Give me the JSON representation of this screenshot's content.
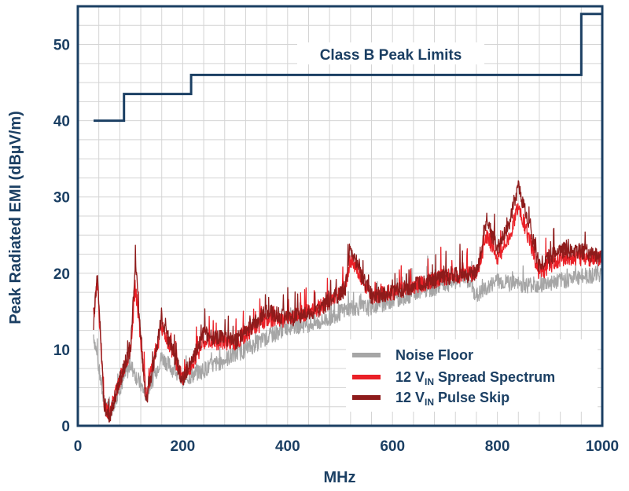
{
  "chart_data": {
    "type": "line",
    "xlabel": "MHz",
    "ylabel": "Peak Radiated EMI (dBµV/m)",
    "xlim": [
      0,
      1000
    ],
    "ylim": [
      0,
      55
    ],
    "x_ticks": [
      "0",
      "200",
      "400",
      "600",
      "800",
      "1000"
    ],
    "y_ticks": [
      "0",
      "10",
      "20",
      "30",
      "40",
      "50"
    ],
    "grid": true,
    "legend_position": "bottom-right",
    "annotation": "Class B Peak Limits",
    "colors": {
      "axis": "#1b3f63",
      "grid": "#d4d4d4",
      "noise_floor": "#a6a6a6",
      "spread_spectrum": "#ea2027",
      "pulse_skip": "#8e1b1b",
      "limit": "#1b3f63"
    },
    "limit_line": {
      "name": "Class B Peak Limits",
      "x": [
        30,
        88,
        88,
        216,
        216,
        960,
        960,
        1000
      ],
      "y": [
        40,
        40,
        43.5,
        43.5,
        46,
        46,
        54,
        54
      ]
    },
    "series": [
      {
        "name": "Noise Floor",
        "legend_main": "Noise Floor",
        "legend_sub": "",
        "legend_tail": "",
        "x": [
          30,
          50,
          60,
          80,
          100,
          130,
          160,
          200,
          260,
          320,
          400,
          460,
          520,
          560,
          600,
          650,
          700,
          740,
          760,
          800,
          840,
          880,
          920,
          960,
          1000
        ],
        "y": [
          12,
          3,
          1.5,
          5,
          8,
          4,
          9,
          6,
          8,
          10,
          13,
          13.5,
          15.5,
          15.5,
          16.5,
          17.5,
          18.5,
          19.5,
          17,
          19,
          18.5,
          18.5,
          19,
          19.5,
          20
        ]
      },
      {
        "name": "12 VIN Spread Spectrum",
        "legend_main": "12 V",
        "legend_sub": "IN",
        "legend_tail": " Spread Spectrum",
        "x": [
          30,
          37,
          50,
          60,
          80,
          100,
          110,
          130,
          160,
          200,
          240,
          300,
          360,
          400,
          460,
          510,
          520,
          560,
          600,
          650,
          700,
          760,
          780,
          800,
          820,
          840,
          880,
          920,
          960,
          1000
        ],
        "y": [
          14,
          19,
          3,
          1.5,
          6,
          10,
          18,
          4,
          13,
          6,
          11,
          11,
          14,
          14,
          15.5,
          18,
          22,
          17,
          17.5,
          18.5,
          19.5,
          20,
          25,
          22,
          24,
          29,
          20,
          22,
          22,
          22
        ]
      },
      {
        "name": "12 VIN Pulse Skip",
        "legend_main": "12 V",
        "legend_sub": "IN",
        "legend_tail": " Pulse Skip",
        "x": [
          30,
          37,
          50,
          60,
          80,
          100,
          110,
          130,
          160,
          200,
          240,
          300,
          360,
          400,
          460,
          510,
          520,
          560,
          600,
          650,
          700,
          760,
          780,
          800,
          820,
          840,
          880,
          920,
          960,
          1000
        ],
        "y": [
          13,
          20,
          3,
          1,
          6,
          10,
          21,
          3,
          14,
          6,
          12,
          11,
          15,
          14,
          15,
          18,
          23,
          17,
          17.5,
          18.5,
          19.5,
          20,
          27,
          23,
          26,
          31.5,
          21,
          23,
          23,
          22
        ]
      }
    ]
  }
}
